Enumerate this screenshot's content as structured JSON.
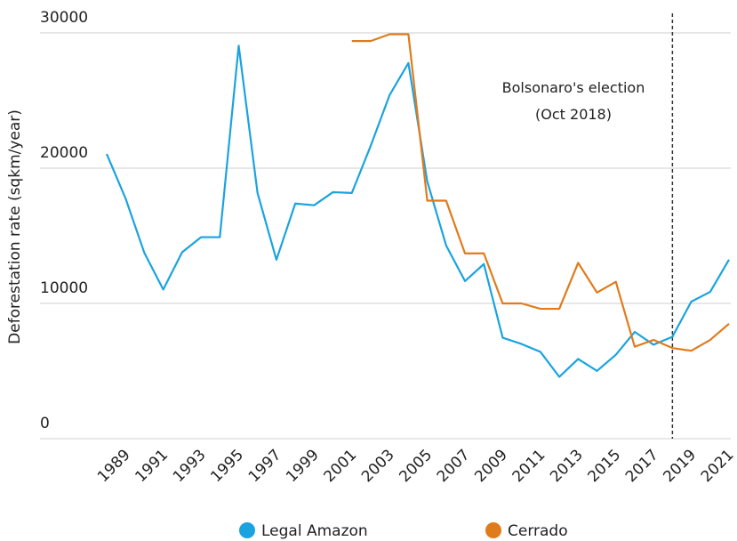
{
  "chart_data": {
    "type": "line",
    "y_label": "Deforestation rate (sqkm/year)",
    "x": [
      1988,
      1989,
      1990,
      1991,
      1992,
      1993,
      1994,
      1995,
      1996,
      1997,
      1998,
      1999,
      2000,
      2001,
      2002,
      2003,
      2004,
      2005,
      2006,
      2007,
      2008,
      2009,
      2010,
      2011,
      2012,
      2013,
      2014,
      2015,
      2016,
      2017,
      2018,
      2019,
      2020,
      2021
    ],
    "series": [
      {
        "name": "Legal Amazon",
        "color": "#1ba3e0",
        "values": [
          21050,
          17770,
          13730,
          11030,
          13786,
          14896,
          14896,
          29059,
          18161,
          13227,
          17383,
          17259,
          18226,
          18165,
          21651,
          25396,
          27772,
          19014,
          14286,
          11651,
          12911,
          7464,
          7000,
          6418,
          4571,
          5891,
          5012,
          6207,
          7893,
          6947,
          7536,
          10129,
          10851,
          13235
        ]
      },
      {
        "name": "Cerrado",
        "color": "#e07b1c",
        "values": [
          null,
          null,
          null,
          null,
          null,
          null,
          null,
          null,
          null,
          null,
          null,
          null,
          null,
          29400,
          29400,
          29900,
          29900,
          17600,
          17600,
          13700,
          13700,
          10000,
          10000,
          9600,
          9600,
          13000,
          10800,
          11600,
          6800,
          7300,
          6700,
          6500,
          7300,
          8500
        ]
      }
    ],
    "xlim": [
      1988,
      2021
    ],
    "xticks": [
      1989,
      1991,
      1993,
      1995,
      1997,
      1999,
      2001,
      2003,
      2005,
      2007,
      2009,
      2011,
      2013,
      2015,
      2017,
      2019,
      2021
    ],
    "ylim": [
      0,
      30000
    ],
    "yticks": [
      0,
      10000,
      20000,
      30000
    ],
    "grid": true,
    "annotation": {
      "x": 2018,
      "lines": [
        "Bolsonaro's election",
        "(Oct 2018)"
      ]
    },
    "legend": "bottom"
  }
}
